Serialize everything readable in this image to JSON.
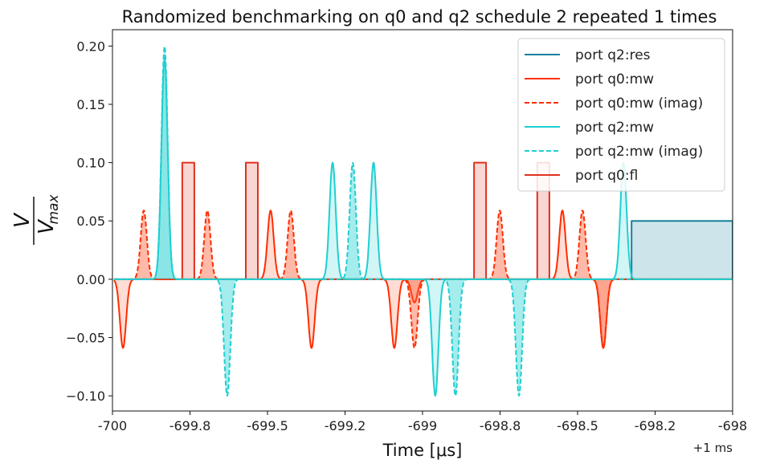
{
  "chart_data": {
    "type": "line",
    "title": "Randomized benchmarking on q0 and q2 schedule 2 repeated 1 times",
    "xlabel": "Time [μs]",
    "ylabel_num": "V",
    "ylabel_den": "V",
    "ylabel_den_sub": "max",
    "x_offset_text": "+1 ms",
    "xlim": [
      -700,
      -698
    ],
    "ylim": [
      -0.113,
      0.214
    ],
    "xticks": [
      -700,
      -699.75,
      -699.5,
      -699.25,
      -699,
      -698.75,
      -698.5,
      -698.25,
      -698
    ],
    "xtick_labels": [
      "-700",
      "-699.8",
      "-699.5",
      "-699.2",
      "-699",
      "-698.8",
      "-698.5",
      "-698.2",
      "-698"
    ],
    "yticks": [
      -0.1,
      -0.05,
      0.0,
      0.05,
      0.1,
      0.15,
      0.2
    ],
    "ytick_labels": [
      "−0.10",
      "−0.05",
      "0.00",
      "0.05",
      "0.10",
      "0.15",
      "0.20"
    ],
    "legend_position": "top-right",
    "gaussian_sigma_us": 0.01,
    "series": [
      {
        "name": "port q2:res",
        "color": "#17809e",
        "fill": "#cde5ea",
        "dashed": false,
        "shape": "rect",
        "pulses": [
          {
            "start": -698.326,
            "end": -698.0,
            "amp": 0.05
          }
        ]
      },
      {
        "name": "port q0:mw",
        "color": "#ff2d00",
        "fill": "rgba(255,80,40,0.2)",
        "dashed": false,
        "shape": "gauss",
        "pulses": [
          {
            "t": -699.966,
            "amp": -0.059
          },
          {
            "t": -699.49,
            "amp": 0.059
          },
          {
            "t": -699.358,
            "amp": -0.059
          },
          {
            "t": -699.091,
            "amp": -0.059
          },
          {
            "t": -699.026,
            "amp": -0.02
          },
          {
            "t": -698.549,
            "amp": 0.059
          },
          {
            "t": -698.417,
            "amp": -0.059
          }
        ]
      },
      {
        "name": "port q0:mw (imag)",
        "color": "#ff2d00",
        "fill": "rgba(255,80,40,0.4)",
        "dashed": true,
        "shape": "gauss",
        "pulses": [
          {
            "t": -699.899,
            "amp": 0.059
          },
          {
            "t": -699.694,
            "amp": 0.059
          },
          {
            "t": -699.425,
            "amp": 0.059
          },
          {
            "t": -699.026,
            "amp": -0.059
          },
          {
            "t": -698.751,
            "amp": 0.059
          },
          {
            "t": -698.484,
            "amp": 0.059
          },
          {
            "t": -698.417,
            "amp": -0.059
          }
        ]
      },
      {
        "name": "port q2:mw",
        "color": "#1fcfd0",
        "fill": "rgba(31,207,208,0.2)",
        "dashed": false,
        "shape": "gauss",
        "pulses": [
          {
            "t": -699.832,
            "amp": 0.19
          },
          {
            "t": -699.29,
            "amp": 0.1
          },
          {
            "t": -699.158,
            "amp": 0.1
          },
          {
            "t": -698.959,
            "amp": -0.1
          },
          {
            "t": -698.352,
            "amp": 0.1
          }
        ]
      },
      {
        "name": "port q2:mw (imag)",
        "color": "#1fcfd0",
        "fill": "rgba(31,207,208,0.4)",
        "dashed": true,
        "shape": "gauss",
        "pulses": [
          {
            "t": -699.832,
            "amp": 0.2
          },
          {
            "t": -699.63,
            "amp": -0.1
          },
          {
            "t": -699.225,
            "amp": 0.1
          },
          {
            "t": -698.894,
            "amp": -0.1
          },
          {
            "t": -698.689,
            "amp": -0.1
          }
        ]
      },
      {
        "name": "port q0:fl",
        "color": "#e0301e",
        "fill": "rgba(224,48,30,0.2)",
        "dashed": false,
        "shape": "rect",
        "pulses": [
          {
            "start": -699.775,
            "end": -699.736,
            "amp": 0.1
          },
          {
            "start": -699.57,
            "end": -699.531,
            "amp": 0.1
          },
          {
            "start": -698.834,
            "end": -698.795,
            "amp": 0.1
          },
          {
            "start": -698.63,
            "end": -698.591,
            "amp": 0.1
          }
        ]
      }
    ]
  }
}
